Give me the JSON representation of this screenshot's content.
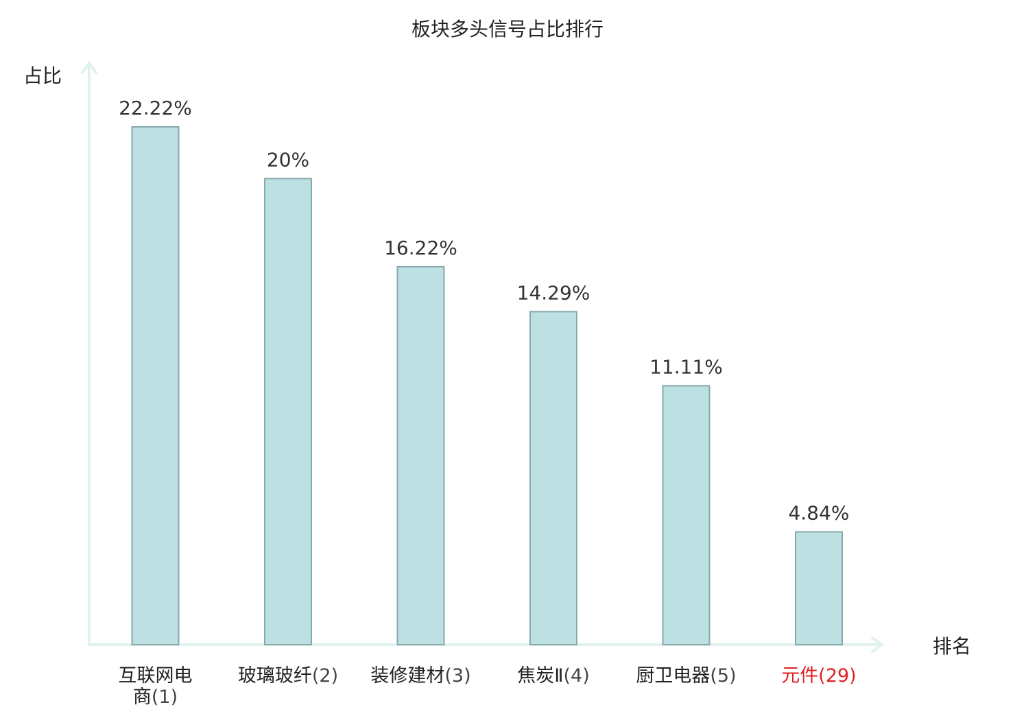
{
  "chart_data": {
    "type": "bar",
    "title": "板块多头信号占比排行",
    "xlabel": "排名",
    "ylabel": "占比",
    "categories": [
      {
        "name": "互联网电商",
        "rank": "(1)",
        "highlight": false
      },
      {
        "name": "玻璃玻纤",
        "rank": "(2)",
        "highlight": false
      },
      {
        "name": "装修建材",
        "rank": "(3)",
        "highlight": false
      },
      {
        "name": "焦炭Ⅱ",
        "rank": "(4)",
        "highlight": false
      },
      {
        "name": "厨卫电器",
        "rank": "(5)",
        "highlight": false
      },
      {
        "name": "元件",
        "rank": "(29)",
        "highlight": true
      }
    ],
    "values": [
      22.22,
      20,
      16.22,
      14.29,
      11.11,
      4.84
    ],
    "value_labels": [
      "22.22%",
      "20%",
      "16.22%",
      "14.29%",
      "11.11%",
      "4.84%"
    ],
    "ylim": [
      0,
      22.22
    ],
    "grid": false,
    "colors": {
      "bar_fill": "#bde0e3",
      "bar_stroke": "#86a9ab",
      "axis": "#e0f2ef",
      "highlight": "#e02020"
    }
  }
}
